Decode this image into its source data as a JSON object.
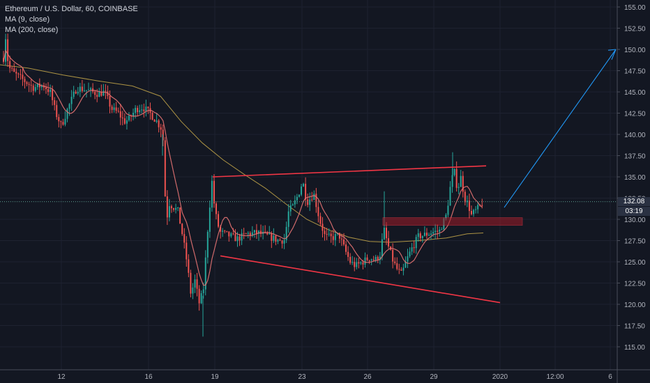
{
  "legend": {
    "title": "Ethereum / U.S. Dollar, 60, COINBASE",
    "ma9": "MA (9, close)",
    "ma200": "MA (200, close)"
  },
  "price_badge": {
    "last_price": "132.08",
    "countdown": "03:19"
  },
  "colors": {
    "background": "#131722",
    "grid": "#1e2230",
    "candle_up": "#26a69a",
    "candle_down": "#ef5350",
    "ma9": "#e57373",
    "ma200": "#c8a94a",
    "trendline": "#f23645",
    "arrow": "#2196f3",
    "zone": "#a01c28",
    "axis_text": "#b2b5be"
  },
  "chart_data": {
    "type": "candlestick",
    "ylim": [
      113.0,
      156.0
    ],
    "y_ticks": [
      "155.00",
      "152.50",
      "150.00",
      "147.50",
      "145.00",
      "142.50",
      "140.00",
      "137.50",
      "135.00",
      "132.50",
      "130.00",
      "127.50",
      "125.00",
      "122.50",
      "120.00",
      "117.50",
      "115.00"
    ],
    "x_ticks": [
      "12",
      "16",
      "19",
      "23",
      "26",
      "29",
      "2020",
      "12:00",
      "6"
    ],
    "series": [
      {
        "name": "MA (9, close)",
        "type": "line"
      },
      {
        "name": "MA (200, close)",
        "type": "line"
      }
    ],
    "annotations": [
      {
        "type": "trendline",
        "from": [
          "Dec 19",
          "135.0"
        ],
        "to": [
          "Dec 31",
          "136.3"
        ]
      },
      {
        "type": "trendline",
        "from": [
          "Dec 19",
          "125.7"
        ],
        "to": [
          "Jan 1",
          "120.2"
        ]
      },
      {
        "type": "rectangle",
        "price_range": [
          129.3,
          130.2
        ]
      },
      {
        "type": "arrow",
        "from": [
          "Jan 1",
          "131.4"
        ],
        "to": [
          "Jan 6",
          "150.0"
        ]
      }
    ]
  }
}
